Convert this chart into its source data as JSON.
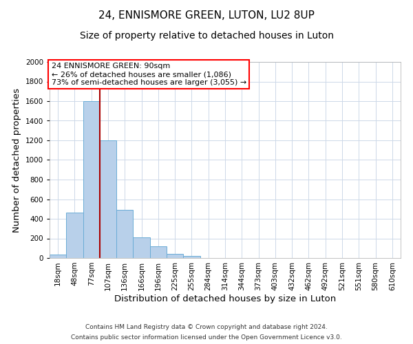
{
  "title": "24, ENNISMORE GREEN, LUTON, LU2 8UP",
  "subtitle": "Size of property relative to detached houses in Luton",
  "xlabel": "Distribution of detached houses by size in Luton",
  "ylabel": "Number of detached properties",
  "bar_labels": [
    "18sqm",
    "48sqm",
    "77sqm",
    "107sqm",
    "136sqm",
    "166sqm",
    "196sqm",
    "225sqm",
    "255sqm",
    "284sqm",
    "314sqm",
    "344sqm",
    "373sqm",
    "403sqm",
    "432sqm",
    "462sqm",
    "492sqm",
    "521sqm",
    "551sqm",
    "580sqm",
    "610sqm"
  ],
  "bar_values": [
    35,
    460,
    1600,
    1200,
    490,
    210,
    120,
    45,
    20,
    0,
    0,
    0,
    0,
    0,
    0,
    0,
    0,
    0,
    0,
    0,
    0
  ],
  "bar_color": "#b8d0ea",
  "bar_edge_color": "#6aacd6",
  "ylim": [
    0,
    2000
  ],
  "yticks": [
    0,
    200,
    400,
    600,
    800,
    1000,
    1200,
    1400,
    1600,
    1800,
    2000
  ],
  "property_line_color": "#aa0000",
  "annotation_line1": "24 ENNISMORE GREEN: 90sqm",
  "annotation_line2": "← 26% of detached houses are smaller (1,086)",
  "annotation_line3": "73% of semi-detached houses are larger (3,055) →",
  "footer_line1": "Contains HM Land Registry data © Crown copyright and database right 2024.",
  "footer_line2": "Contains public sector information licensed under the Open Government Licence v3.0.",
  "bg_color": "#ffffff",
  "grid_color": "#cdd8e8",
  "title_fontsize": 11,
  "subtitle_fontsize": 10,
  "axis_label_fontsize": 9.5,
  "tick_fontsize": 7.5,
  "annotation_fontsize": 8,
  "footer_fontsize": 6.5
}
